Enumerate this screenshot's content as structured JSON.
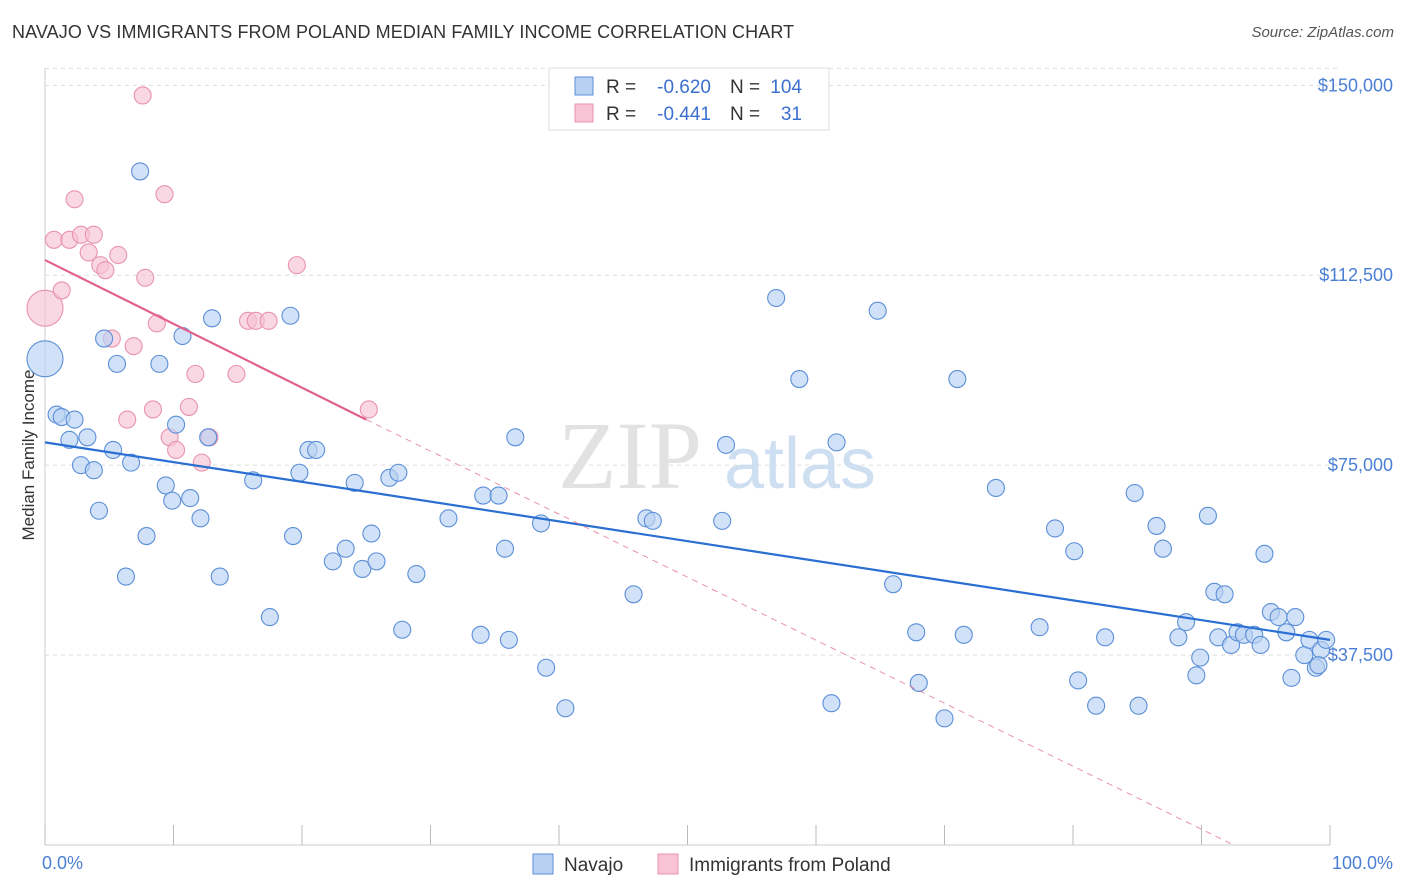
{
  "header": {
    "title": "NAVAJO VS IMMIGRANTS FROM POLAND MEDIAN FAMILY INCOME CORRELATION CHART",
    "source": "Source: ZipAtlas.com"
  },
  "colors": {
    "navajo_fill": "#b8d1f3",
    "navajo_stroke": "#5b8fd8",
    "navajo_line": "#2a6fd1",
    "poland_fill": "#f8c3d4",
    "poland_stroke": "#e893b0",
    "poland_line": "#e0628c",
    "tick": "#4a7fd4",
    "grid": "#dddddd"
  },
  "watermark": {
    "zip": "ZIP",
    "atlas": "atlas"
  },
  "chart_data": {
    "type": "scatter",
    "title": "NAVAJO VS IMMIGRANTS FROM POLAND MEDIAN FAMILY INCOME CORRELATION CHART",
    "xlabel": "",
    "ylabel": "Median Family Income",
    "xlim": [
      0,
      100
    ],
    "ylim": [
      0,
      155000
    ],
    "x_tick_labels": [
      "0.0%",
      "100.0%"
    ],
    "y_ticks": [
      37500,
      75000,
      112500,
      150000
    ],
    "y_tick_labels": [
      "$37,500",
      "$75,000",
      "$112,500",
      "$150,000"
    ],
    "grid": true,
    "legend": {
      "position": "top-center",
      "entries": [
        {
          "series": "Navajo",
          "r_label": "R =",
          "r": "-0.620",
          "n_label": "N =",
          "n": "104"
        },
        {
          "series": "Immigrants from Poland",
          "r_label": "R =",
          "r": "-0.441",
          "n_label": "N =",
          "n": "31"
        }
      ]
    },
    "bottom_legend": [
      "Navajo",
      "Immigrants from Poland"
    ],
    "series": [
      {
        "name": "Navajo",
        "trend": {
          "x": [
            0,
            100
          ],
          "y": [
            79500,
            40500
          ]
        },
        "points": [
          {
            "x": 0.0,
            "y": 96000,
            "big": true
          },
          {
            "x": 0.9,
            "y": 85000
          },
          {
            "x": 1.3,
            "y": 84500
          },
          {
            "x": 1.9,
            "y": 80000
          },
          {
            "x": 2.3,
            "y": 84000
          },
          {
            "x": 2.8,
            "y": 75000
          },
          {
            "x": 3.3,
            "y": 80500
          },
          {
            "x": 3.8,
            "y": 74000
          },
          {
            "x": 4.2,
            "y": 66000
          },
          {
            "x": 4.6,
            "y": 100000
          },
          {
            "x": 5.3,
            "y": 78000
          },
          {
            "x": 5.6,
            "y": 95000
          },
          {
            "x": 6.3,
            "y": 53000
          },
          {
            "x": 6.7,
            "y": 75500
          },
          {
            "x": 7.4,
            "y": 133000
          },
          {
            "x": 7.9,
            "y": 61000
          },
          {
            "x": 8.9,
            "y": 95000
          },
          {
            "x": 9.4,
            "y": 71000
          },
          {
            "x": 9.9,
            "y": 68000
          },
          {
            "x": 10.2,
            "y": 83000
          },
          {
            "x": 10.7,
            "y": 100500
          },
          {
            "x": 11.3,
            "y": 68500
          },
          {
            "x": 12.1,
            "y": 64500
          },
          {
            "x": 12.7,
            "y": 80500
          },
          {
            "x": 13.0,
            "y": 104000
          },
          {
            "x": 13.6,
            "y": 53000
          },
          {
            "x": 16.2,
            "y": 72000
          },
          {
            "x": 17.5,
            "y": 45000
          },
          {
            "x": 19.1,
            "y": 104500
          },
          {
            "x": 19.3,
            "y": 61000
          },
          {
            "x": 19.8,
            "y": 73500
          },
          {
            "x": 20.5,
            "y": 78000
          },
          {
            "x": 21.1,
            "y": 78000
          },
          {
            "x": 22.4,
            "y": 56000
          },
          {
            "x": 23.4,
            "y": 58500
          },
          {
            "x": 24.1,
            "y": 71500
          },
          {
            "x": 24.7,
            "y": 54500
          },
          {
            "x": 25.4,
            "y": 61500
          },
          {
            "x": 25.8,
            "y": 56000
          },
          {
            "x": 26.8,
            "y": 72500
          },
          {
            "x": 27.5,
            "y": 73500
          },
          {
            "x": 27.8,
            "y": 42500
          },
          {
            "x": 28.9,
            "y": 53500
          },
          {
            "x": 31.4,
            "y": 64500
          },
          {
            "x": 33.9,
            "y": 41500
          },
          {
            "x": 34.1,
            "y": 69000
          },
          {
            "x": 35.3,
            "y": 69000
          },
          {
            "x": 35.8,
            "y": 58500
          },
          {
            "x": 36.1,
            "y": 40500
          },
          {
            "x": 36.6,
            "y": 80500
          },
          {
            "x": 38.6,
            "y": 63500
          },
          {
            "x": 39.0,
            "y": 35000
          },
          {
            "x": 40.5,
            "y": 27000
          },
          {
            "x": 45.8,
            "y": 49500
          },
          {
            "x": 46.8,
            "y": 64500
          },
          {
            "x": 47.3,
            "y": 64000
          },
          {
            "x": 52.7,
            "y": 64000
          },
          {
            "x": 53.0,
            "y": 79000
          },
          {
            "x": 56.9,
            "y": 108000
          },
          {
            "x": 58.7,
            "y": 92000
          },
          {
            "x": 61.2,
            "y": 28000
          },
          {
            "x": 61.6,
            "y": 79500
          },
          {
            "x": 64.8,
            "y": 105500
          },
          {
            "x": 66.0,
            "y": 51500
          },
          {
            "x": 67.8,
            "y": 42000
          },
          {
            "x": 68.0,
            "y": 32000
          },
          {
            "x": 70.0,
            "y": 25000
          },
          {
            "x": 71.0,
            "y": 92000
          },
          {
            "x": 71.5,
            "y": 41500
          },
          {
            "x": 74.0,
            "y": 70500
          },
          {
            "x": 77.4,
            "y": 43000
          },
          {
            "x": 78.6,
            "y": 62500
          },
          {
            "x": 80.1,
            "y": 58000
          },
          {
            "x": 80.4,
            "y": 32500
          },
          {
            "x": 81.8,
            "y": 27500
          },
          {
            "x": 82.5,
            "y": 41000
          },
          {
            "x": 84.8,
            "y": 69500
          },
          {
            "x": 85.1,
            "y": 27500
          },
          {
            "x": 86.5,
            "y": 63000
          },
          {
            "x": 87.0,
            "y": 58500
          },
          {
            "x": 88.2,
            "y": 41000
          },
          {
            "x": 88.8,
            "y": 44000
          },
          {
            "x": 89.6,
            "y": 33500
          },
          {
            "x": 89.9,
            "y": 37000
          },
          {
            "x": 90.5,
            "y": 65000
          },
          {
            "x": 91.0,
            "y": 50000
          },
          {
            "x": 91.3,
            "y": 41000
          },
          {
            "x": 91.8,
            "y": 49500
          },
          {
            "x": 92.3,
            "y": 39500
          },
          {
            "x": 92.8,
            "y": 42000
          },
          {
            "x": 93.3,
            "y": 41500
          },
          {
            "x": 94.1,
            "y": 41500
          },
          {
            "x": 94.6,
            "y": 39500
          },
          {
            "x": 94.9,
            "y": 57500
          },
          {
            "x": 95.4,
            "y": 46000
          },
          {
            "x": 96.0,
            "y": 45000
          },
          {
            "x": 96.6,
            "y": 42000
          },
          {
            "x": 97.0,
            "y": 33000
          },
          {
            "x": 97.3,
            "y": 45000
          },
          {
            "x": 98.0,
            "y": 37500
          },
          {
            "x": 98.4,
            "y": 40500
          },
          {
            "x": 98.9,
            "y": 35000
          },
          {
            "x": 99.3,
            "y": 38500
          },
          {
            "x": 99.7,
            "y": 40500
          },
          {
            "x": 99.1,
            "y": 35500
          }
        ]
      },
      {
        "name": "Immigrants from Poland",
        "trend": {
          "x": [
            0,
            25
          ],
          "y": [
            115500,
            84000
          ]
        },
        "trend_extension": {
          "x": [
            25,
            92.5
          ],
          "y": [
            84000,
            0
          ]
        },
        "points": [
          {
            "x": 0.0,
            "y": 106000,
            "big": true
          },
          {
            "x": 0.7,
            "y": 119500
          },
          {
            "x": 1.3,
            "y": 109500
          },
          {
            "x": 1.9,
            "y": 119500
          },
          {
            "x": 2.3,
            "y": 127500
          },
          {
            "x": 2.8,
            "y": 120500
          },
          {
            "x": 3.4,
            "y": 117000
          },
          {
            "x": 3.8,
            "y": 120500
          },
          {
            "x": 4.3,
            "y": 114500
          },
          {
            "x": 4.7,
            "y": 113500
          },
          {
            "x": 5.2,
            "y": 100000
          },
          {
            "x": 5.7,
            "y": 116500
          },
          {
            "x": 6.4,
            "y": 84000
          },
          {
            "x": 6.9,
            "y": 98500
          },
          {
            "x": 7.6,
            "y": 148000
          },
          {
            "x": 7.8,
            "y": 112000
          },
          {
            "x": 8.4,
            "y": 86000
          },
          {
            "x": 8.7,
            "y": 103000
          },
          {
            "x": 9.3,
            "y": 128500
          },
          {
            "x": 9.7,
            "y": 80500
          },
          {
            "x": 10.2,
            "y": 78000
          },
          {
            "x": 11.2,
            "y": 86500
          },
          {
            "x": 11.7,
            "y": 93000
          },
          {
            "x": 12.2,
            "y": 75500
          },
          {
            "x": 12.8,
            "y": 80500
          },
          {
            "x": 14.9,
            "y": 93000
          },
          {
            "x": 15.8,
            "y": 103500
          },
          {
            "x": 16.4,
            "y": 103500
          },
          {
            "x": 17.4,
            "y": 103500
          },
          {
            "x": 19.6,
            "y": 114500
          },
          {
            "x": 25.2,
            "y": 86000
          }
        ]
      }
    ]
  }
}
